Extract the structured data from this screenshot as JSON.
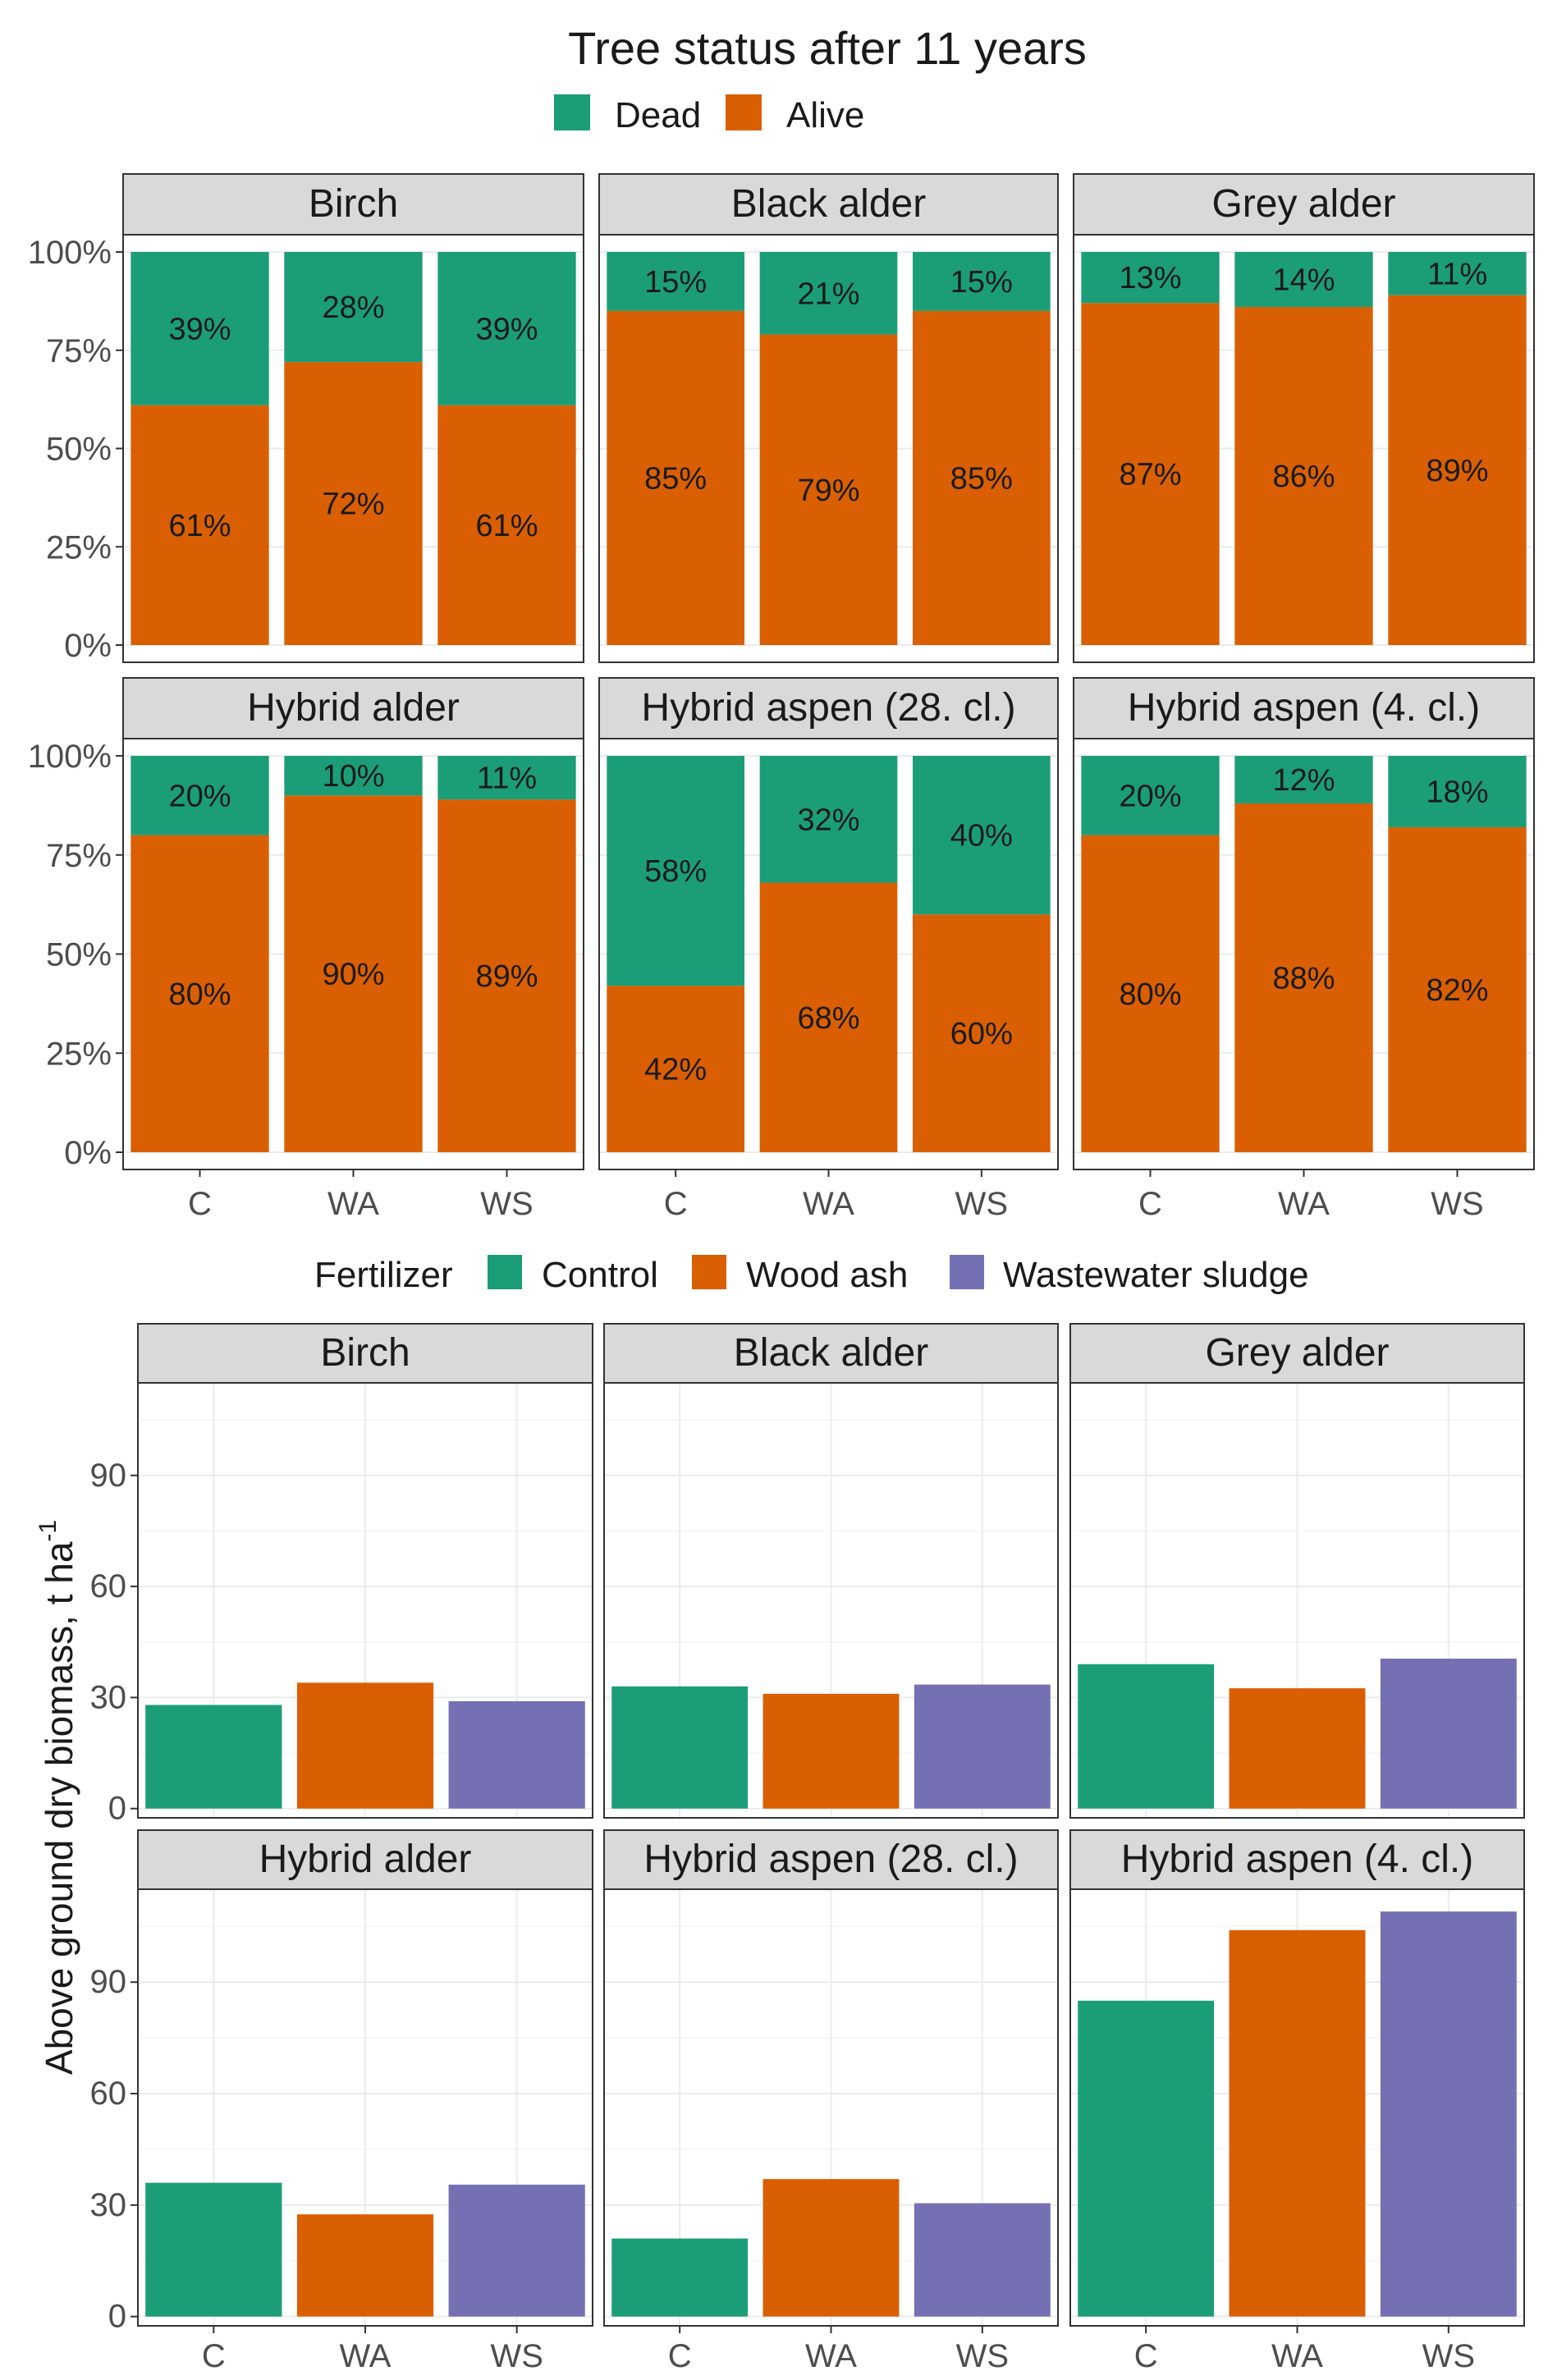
{
  "chart_data": [
    {
      "type": "bar",
      "stacked": true,
      "title": "Tree status after 11 years",
      "legend": {
        "items": [
          {
            "name": "Dead",
            "color": "#1b9e77"
          },
          {
            "name": "Alive",
            "color": "#d95f02"
          }
        ],
        "placement": "top"
      },
      "categories": [
        "C",
        "WA",
        "WS"
      ],
      "y_ticks": [
        "0%",
        "25%",
        "50%",
        "75%",
        "100%"
      ],
      "ylim": [
        0,
        100
      ],
      "facets": [
        {
          "name": "Birch",
          "dead": [
            39,
            28,
            39
          ],
          "alive": [
            61,
            72,
            61
          ],
          "dead_labels": [
            "39%",
            "28%",
            "39%"
          ],
          "alive_labels": [
            "61%",
            "72%",
            "61%"
          ]
        },
        {
          "name": "Black alder",
          "dead": [
            15,
            21,
            15
          ],
          "alive": [
            85,
            79,
            85
          ],
          "dead_labels": [
            "15%",
            "21%",
            "15%"
          ],
          "alive_labels": [
            "85%",
            "79%",
            "85%"
          ]
        },
        {
          "name": "Grey alder",
          "dead": [
            13,
            14,
            11
          ],
          "alive": [
            87,
            86,
            89
          ],
          "dead_labels": [
            "13%",
            "14%",
            "11%"
          ],
          "alive_labels": [
            "87%",
            "86%",
            "89%"
          ]
        },
        {
          "name": "Hybrid alder",
          "dead": [
            20,
            10,
            11
          ],
          "alive": [
            80,
            90,
            89
          ],
          "dead_labels": [
            "20%",
            "10%",
            "11%"
          ],
          "alive_labels": [
            "80%",
            "90%",
            "89%"
          ]
        },
        {
          "name": "Hybrid aspen (28. cl.)",
          "dead": [
            58,
            32,
            40
          ],
          "alive": [
            42,
            68,
            60
          ],
          "dead_labels": [
            "58%",
            "32%",
            "40%"
          ],
          "alive_labels": [
            "42%",
            "68%",
            "60%"
          ]
        },
        {
          "name": "Hybrid aspen (4. cl.)",
          "dead": [
            20,
            12,
            18
          ],
          "alive": [
            80,
            88,
            82
          ],
          "dead_labels": [
            "20%",
            "12%",
            "18%"
          ],
          "alive_labels": [
            "80%",
            "88%",
            "82%"
          ]
        }
      ]
    },
    {
      "type": "bar",
      "legend": {
        "title": "Fertilizer",
        "items": [
          {
            "name": "Control",
            "color": "#1b9e77"
          },
          {
            "name": "Wood ash",
            "color": "#d95f02"
          },
          {
            "name": "Wastewater sludge",
            "color": "#7570b3"
          }
        ],
        "placement": "top"
      },
      "categories": [
        "C",
        "WA",
        "WS"
      ],
      "ylabel": "Above ground dry biomass, t  ha",
      "ylabel_superscript": "-1",
      "y_ticks": [
        "0",
        "30",
        "60",
        "90"
      ],
      "ylim": [
        -2.5,
        115
      ],
      "facets": [
        {
          "name": "Birch",
          "values": [
            28,
            34,
            29
          ]
        },
        {
          "name": "Black alder",
          "values": [
            33,
            31,
            33.5
          ]
        },
        {
          "name": "Grey alder",
          "values": [
            39,
            32.5,
            40.5
          ]
        },
        {
          "name": "Hybrid alder",
          "values": [
            36,
            27.5,
            35.5
          ]
        },
        {
          "name": "Hybrid aspen (28. cl.)",
          "values": [
            21,
            37,
            30.5
          ]
        },
        {
          "name": "Hybrid aspen (4. cl.)",
          "values": [
            85,
            104,
            109
          ]
        }
      ]
    }
  ]
}
